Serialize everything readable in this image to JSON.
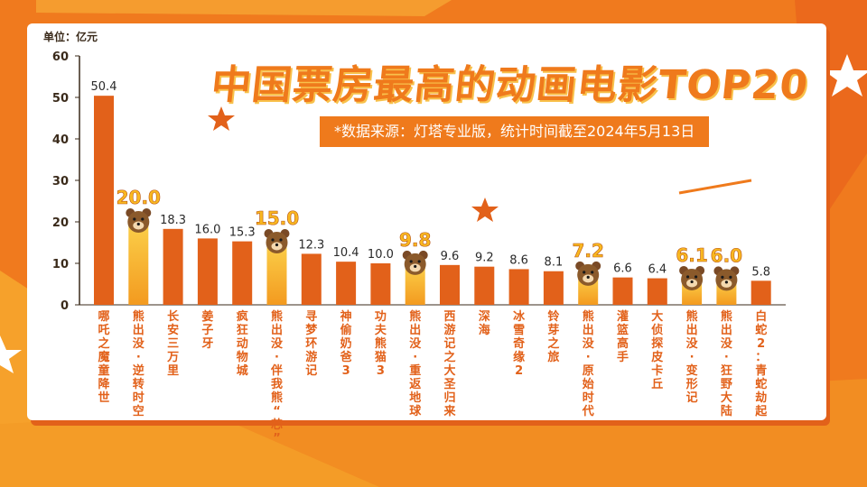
{
  "header": {
    "title": "中国票房最高的动画电影TOP20",
    "subtitle": "*数据来源：灯塔专业版，统计时间截至2024年5月13日",
    "unit": "单位：亿元"
  },
  "colors": {
    "background": "#f07a1e",
    "bar_dark": "#e2611a",
    "bar_gradient_top": "#f5a020",
    "bar_highlight": "#f9c23c",
    "label": "#e2611a",
    "highlight_value": "#f9b820"
  },
  "chart_data": {
    "type": "bar",
    "title": "中国票房最高的动画电影TOP20",
    "ylabel": "单位：亿元",
    "ylim": [
      0,
      60
    ],
    "yticks": [
      0,
      10,
      20,
      30,
      40,
      50,
      60
    ],
    "grid": false,
    "categories": [
      "哪吒之魔童降世",
      "熊出没·逆转时空",
      "长安三万里",
      "姜子牙",
      "疯狂动物城",
      "熊出没·伴我熊“芯”",
      "寻梦环游记",
      "神偷奶爸3",
      "功夫熊猫3",
      "熊出没·重返地球",
      "西游记之大圣归来",
      "深海",
      "冰雪奇缘2",
      "铃芽之旅",
      "熊出没·原始时代",
      "灌篮高手",
      "大侦探皮卡丘",
      "熊出没·变形记",
      "熊出没·狂野大陆",
      "白蛇2：青蛇劫起"
    ],
    "values": [
      50.4,
      20.0,
      18.3,
      16.0,
      15.3,
      15.0,
      12.3,
      10.4,
      10.0,
      9.8,
      9.6,
      9.2,
      8.6,
      8.1,
      7.2,
      6.6,
      6.4,
      6.1,
      6.0,
      5.8
    ],
    "value_labels": [
      "50.4",
      "20.0",
      "18.3",
      "16.0",
      "15.3",
      "15.0",
      "12.3",
      "10.4",
      "10.0",
      "9.8",
      "9.6",
      "9.2",
      "8.6",
      "8.1",
      "7.2",
      "6.6",
      "6.4",
      "6.1",
      "6.0",
      "5.8"
    ],
    "highlighted": [
      false,
      true,
      false,
      false,
      false,
      true,
      false,
      false,
      false,
      true,
      false,
      false,
      false,
      false,
      true,
      false,
      false,
      true,
      true,
      false
    ],
    "highlight_icon": "bear-face-icon"
  }
}
